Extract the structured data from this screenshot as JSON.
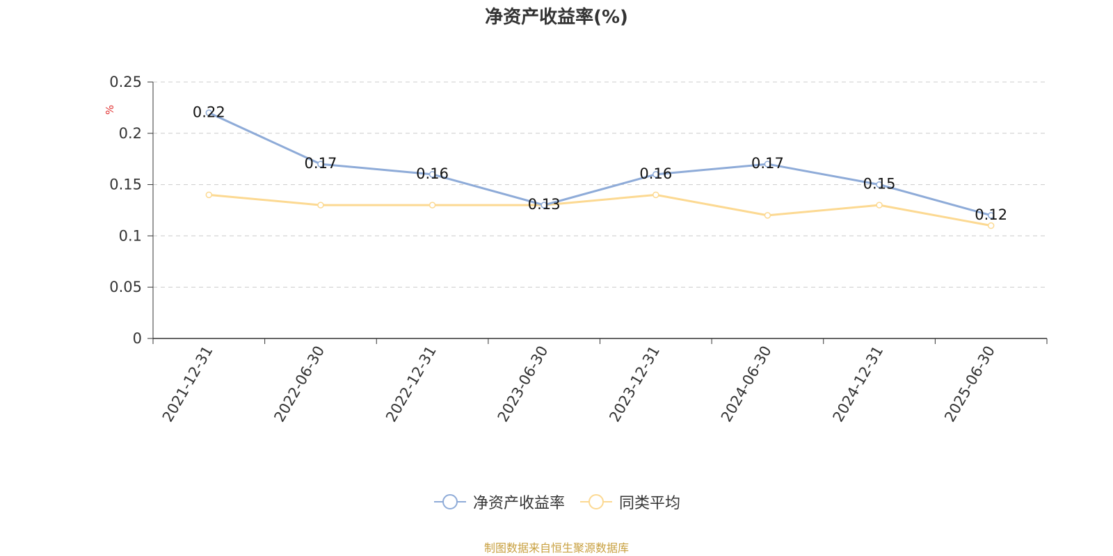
{
  "chart_data": {
    "type": "line",
    "title": "净资产收益率(%)",
    "ylabel": "%",
    "xlabel": "",
    "categories": [
      "2021-12-31",
      "2022-06-30",
      "2022-12-31",
      "2023-06-30",
      "2023-12-31",
      "2024-06-30",
      "2024-12-31",
      "2025-06-30"
    ],
    "series": [
      {
        "name": "净资产收益率",
        "values": [
          0.22,
          0.17,
          0.16,
          0.13,
          0.16,
          0.17,
          0.15,
          0.12
        ],
        "color": "#8eabd8",
        "show_labels": true
      },
      {
        "name": "同类平均",
        "values": [
          0.14,
          0.13,
          0.13,
          0.13,
          0.14,
          0.12,
          0.13,
          0.11
        ],
        "color": "#fcd992",
        "show_labels": false
      }
    ],
    "ylim": [
      0,
      0.25
    ],
    "yticks": [
      "0",
      "0.05",
      "0.1",
      "0.15",
      "0.2",
      "0.25"
    ],
    "grid": true,
    "legend_position": "bottom-center"
  },
  "source_note": "制图数据来自恒生聚源数据库"
}
